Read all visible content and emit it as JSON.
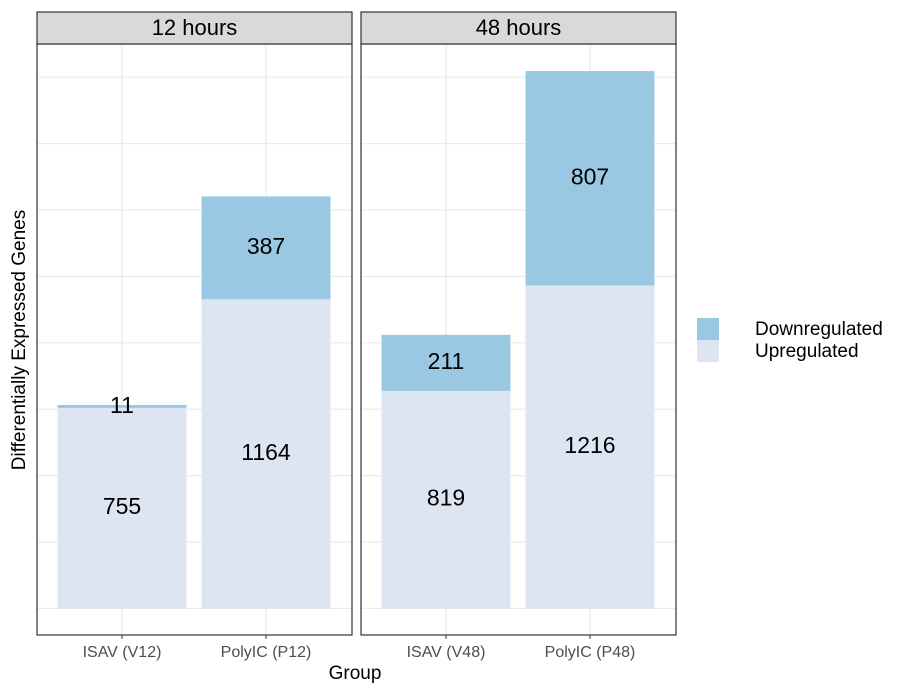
{
  "chart_data": {
    "type": "bar",
    "stacked": true,
    "xlabel": "Group",
    "ylabel": "Differentially Expressed Genes",
    "facets": [
      "12 hours",
      "48 hours"
    ],
    "categories": [
      [
        "ISAV (V12)",
        "PolyIC (P12)"
      ],
      [
        "ISAV (V48)",
        "PolyIC (P48)"
      ]
    ],
    "series": [
      {
        "name": "Upregulated",
        "color": "#dde5f3",
        "values": [
          [
            755,
            1164
          ],
          [
            819,
            1216
          ]
        ]
      },
      {
        "name": "Downregulated",
        "color": "#9ac8e2",
        "values": [
          [
            11,
            387
          ],
          [
            211,
            807
          ]
        ]
      }
    ],
    "ylim": [
      -100,
      2125
    ],
    "yticks": [
      0,
      250,
      500,
      750,
      1000,
      1250,
      1500,
      1750,
      2000
    ],
    "grid": true,
    "legend": "right"
  }
}
